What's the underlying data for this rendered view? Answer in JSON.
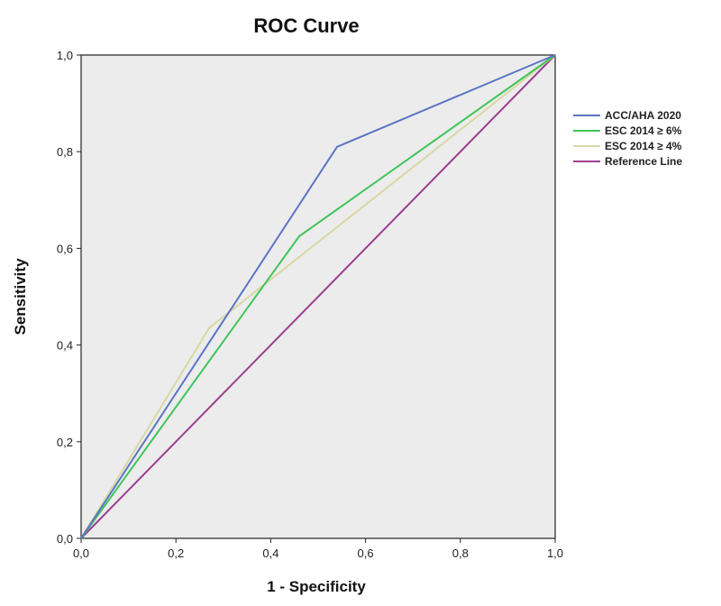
{
  "chart_data": {
    "type": "line",
    "title": "ROC Curve",
    "xlabel": "1 - Specificity",
    "ylabel": "Sensitivity",
    "xlim": [
      0,
      1
    ],
    "ylim": [
      0,
      1
    ],
    "x_ticks": [
      "0,0",
      "0,2",
      "0,4",
      "0,6",
      "0,8",
      "1,0"
    ],
    "y_ticks": [
      "0,0",
      "0,2",
      "0,4",
      "0,6",
      "0,8",
      "1,0"
    ],
    "grid": false,
    "legend_position": "right",
    "plot_background": "#ececec",
    "series": [
      {
        "name": "ACC/AHA 2020",
        "color": "#5b75c4",
        "x": [
          0.0,
          0.54,
          1.0
        ],
        "y": [
          0.0,
          0.81,
          1.0
        ]
      },
      {
        "name": "ESC 2014 ≥ 6%",
        "color": "#3fc55a",
        "x": [
          0.0,
          0.46,
          1.0
        ],
        "y": [
          0.0,
          0.625,
          1.0
        ]
      },
      {
        "name": "ESC 2014 ≥ 4%",
        "color": "#d9d7a4",
        "x": [
          0.0,
          0.27,
          1.0
        ],
        "y": [
          0.0,
          0.435,
          1.0
        ]
      },
      {
        "name": "Reference Line",
        "color": "#9a3f92",
        "x": [
          0.0,
          1.0
        ],
        "y": [
          0.0,
          1.0
        ]
      }
    ]
  }
}
